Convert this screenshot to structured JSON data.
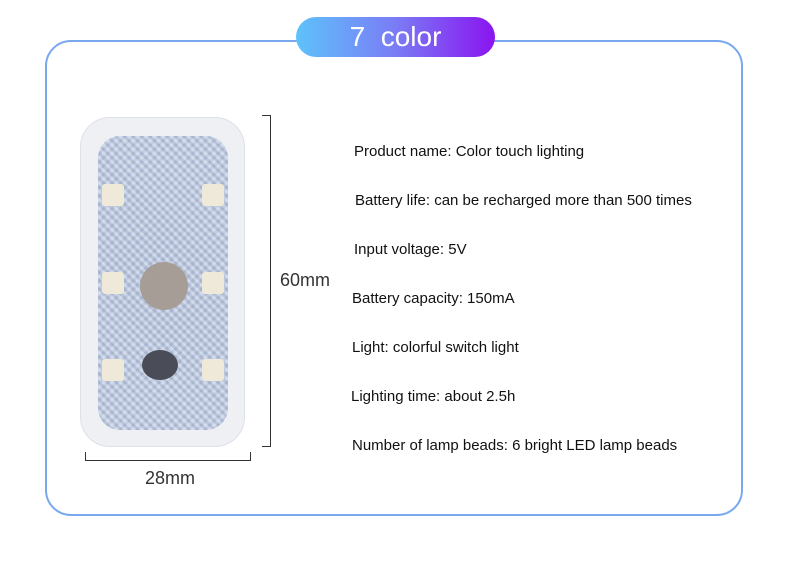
{
  "badge": "7  color",
  "dimensions": {
    "height": "60mm",
    "width": "28mm"
  },
  "specs": [
    "Product name: Color touch lighting",
    "Battery life: can be recharged more than 500 times",
    "Input voltage: 5V",
    "Battery capacity: 150mA",
    "Light: colorful switch light",
    "Lighting time: about 2.5h",
    "Number of lamp beads: 6 bright LED lamp beads"
  ],
  "colors": {
    "frame": "#7aa8ee",
    "badge_start": "#5ec2fb",
    "badge_end": "#8a14f0"
  }
}
